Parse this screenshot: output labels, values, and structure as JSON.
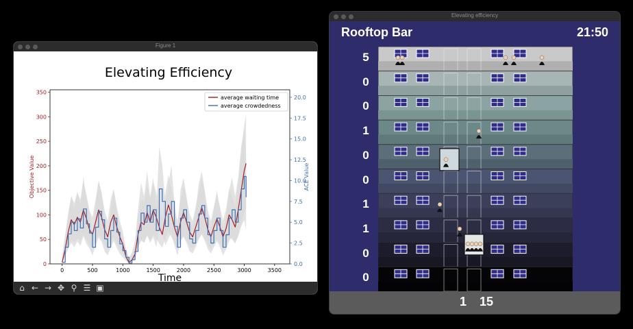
{
  "figure_window": {
    "title": "Figure 1",
    "toolbar": [
      {
        "name": "home-icon",
        "glyph": "⌂"
      },
      {
        "name": "back-arrow-icon",
        "glyph": "←"
      },
      {
        "name": "forward-arrow-icon",
        "glyph": "→"
      },
      {
        "name": "pan-icon",
        "glyph": "✥"
      },
      {
        "name": "zoom-icon",
        "glyph": "⚲"
      },
      {
        "name": "subplots-config-icon",
        "glyph": "☰"
      },
      {
        "name": "save-icon",
        "glyph": "▣"
      }
    ]
  },
  "chart_data": {
    "type": "line",
    "title": "Elevating Efficiency",
    "xlabel": "Time",
    "ylabel_left": "Objective Value",
    "ylabel_right": "ACE Value",
    "xlim": [
      -200,
      3750
    ],
    "ylim_left": [
      0,
      355
    ],
    "ylim_right": [
      0,
      20.9
    ],
    "xticks": [
      0,
      500,
      1000,
      1500,
      2000,
      2500,
      3000,
      3500
    ],
    "yticks_left": [
      0,
      50,
      100,
      150,
      200,
      250,
      300,
      350
    ],
    "yticks_right": [
      "0.0",
      "2.5",
      "5.0",
      "7.5",
      "10.0",
      "12.5",
      "15.0",
      "17.5",
      "20.0"
    ],
    "legend_position": "top-right",
    "colors": {
      "waiting": "#a31e23",
      "crowd": "#3c6eb4",
      "band": "#d9d9d9",
      "left_axis": "#a31e23",
      "right_axis": "#3c6eb4"
    },
    "series": [
      {
        "name": "average waiting time",
        "axis": "left",
        "x": [
          0,
          50,
          100,
          150,
          200,
          250,
          300,
          350,
          400,
          450,
          500,
          550,
          600,
          650,
          700,
          750,
          800,
          850,
          900,
          950,
          1000,
          1050,
          1100,
          1150,
          1200,
          1250,
          1300,
          1350,
          1400,
          1450,
          1500,
          1550,
          1600,
          1650,
          1700,
          1750,
          1800,
          1850,
          1900,
          1950,
          2000,
          2050,
          2100,
          2150,
          2200,
          2250,
          2300,
          2350,
          2400,
          2450,
          2500,
          2550,
          2600,
          2650,
          2700,
          2750,
          2800,
          2850,
          2900,
          2950,
          3000,
          3030
        ],
        "values": [
          3,
          30,
          65,
          90,
          80,
          95,
          85,
          110,
          92,
          70,
          60,
          85,
          110,
          95,
          70,
          55,
          85,
          100,
          75,
          55,
          40,
          15,
          3,
          8,
          20,
          60,
          85,
          80,
          105,
          85,
          110,
          95,
          75,
          60,
          95,
          120,
          100,
          75,
          55,
          85,
          105,
          85,
          65,
          55,
          75,
          95,
          115,
          95,
          70,
          55,
          75,
          92,
          75,
          55,
          72,
          100,
          90,
          75,
          110,
          150,
          190,
          205
        ]
      },
      {
        "name": "average crowdedness",
        "axis": "right",
        "x": [
          0,
          50,
          100,
          150,
          200,
          250,
          300,
          350,
          400,
          450,
          500,
          550,
          600,
          650,
          700,
          750,
          800,
          850,
          900,
          950,
          1000,
          1050,
          1100,
          1150,
          1200,
          1250,
          1300,
          1350,
          1400,
          1450,
          1500,
          1550,
          1600,
          1650,
          1700,
          1750,
          1800,
          1850,
          1900,
          1950,
          2000,
          2050,
          2100,
          2150,
          2200,
          2250,
          2300,
          2350,
          2400,
          2450,
          2500,
          2550,
          2600,
          2650,
          2700,
          2750,
          2800,
          2850,
          2900,
          2950,
          3000,
          3030
        ],
        "values": [
          0.2,
          2.0,
          3.6,
          5.0,
          4.0,
          5.4,
          4.3,
          6.6,
          4.8,
          3.7,
          2.0,
          4.4,
          6.3,
          5.3,
          3.0,
          2.0,
          4.0,
          5.5,
          3.8,
          2.4,
          1.6,
          0.8,
          0.1,
          0.5,
          1.5,
          4.0,
          6.1,
          5.0,
          7.0,
          5.0,
          6.5,
          4.0,
          9.0,
          7.5,
          4.5,
          6.0,
          7.5,
          4.5,
          2.0,
          5.5,
          6.5,
          5.0,
          3.0,
          2.5,
          4.0,
          6.0,
          7.0,
          5.5,
          3.5,
          2.5,
          4.0,
          5.5,
          4.0,
          2.0,
          3.5,
          5.5,
          6.5,
          5.0,
          6.5,
          9.0,
          10.5,
          8.0
        ]
      }
    ]
  },
  "game_window": {
    "title": "Elevating efficiency",
    "floor_name": "Rooftop Bar",
    "clock": "21:50",
    "floor_counts": [
      "5",
      "0",
      "0",
      "1",
      "0",
      "0",
      "1",
      "1",
      "0",
      "0"
    ],
    "status_floor": "1",
    "status_count": "15"
  }
}
